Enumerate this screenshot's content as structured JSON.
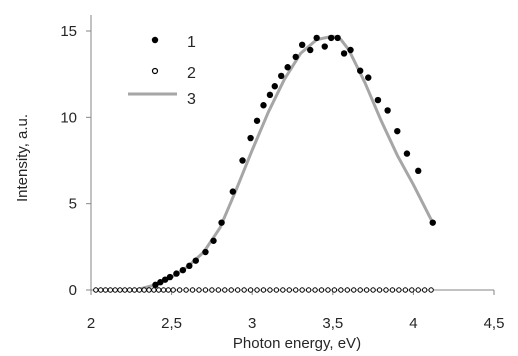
{
  "chart_data": {
    "type": "scatter",
    "xlabel": "Photon energy, eV)",
    "ylabel": "Intensity, a.u.",
    "xlim": [
      2,
      4.5
    ],
    "ylim": [
      0,
      15
    ],
    "x_ticks": [
      "2",
      "2,5",
      "3",
      "3,5",
      "4",
      "4,5"
    ],
    "y_ticks": [
      "0",
      "5",
      "10",
      "15"
    ],
    "x_tick_values": [
      2,
      2.5,
      3,
      3.5,
      4,
      4.5
    ],
    "y_tick_values": [
      0,
      5,
      10,
      15
    ],
    "grid": false,
    "legend_position": "top-left",
    "series": [
      {
        "name": "1",
        "marker": "filled-circle",
        "color": "#000000",
        "points": [
          [
            2.4,
            0.3
          ],
          [
            2.43,
            0.45
          ],
          [
            2.46,
            0.6
          ],
          [
            2.49,
            0.75
          ],
          [
            2.53,
            0.95
          ],
          [
            2.57,
            1.15
          ],
          [
            2.61,
            1.4
          ],
          [
            2.65,
            1.7
          ],
          [
            2.71,
            2.2
          ],
          [
            2.76,
            2.85
          ],
          [
            2.81,
            3.9
          ],
          [
            2.88,
            5.7
          ],
          [
            2.94,
            7.5
          ],
          [
            2.99,
            8.8
          ],
          [
            3.03,
            9.8
          ],
          [
            3.07,
            10.7
          ],
          [
            3.11,
            11.3
          ],
          [
            3.14,
            11.8
          ],
          [
            3.18,
            12.4
          ],
          [
            3.22,
            12.9
          ],
          [
            3.27,
            13.5
          ],
          [
            3.31,
            14.2
          ],
          [
            3.36,
            13.9
          ],
          [
            3.4,
            14.6
          ],
          [
            3.45,
            14.1
          ],
          [
            3.49,
            14.6
          ],
          [
            3.53,
            14.6
          ],
          [
            3.57,
            13.7
          ],
          [
            3.61,
            13.9
          ],
          [
            3.67,
            12.7
          ],
          [
            3.72,
            12.3
          ],
          [
            3.78,
            11.0
          ],
          [
            3.84,
            10.4
          ],
          [
            3.9,
            9.2
          ],
          [
            3.96,
            7.9
          ],
          [
            4.03,
            6.9
          ],
          [
            4.12,
            3.9
          ]
        ]
      },
      {
        "name": "2",
        "marker": "open-circle",
        "color": "#000000",
        "points": [
          [
            2.03,
            0
          ],
          [
            2.06,
            0
          ],
          [
            2.09,
            0
          ],
          [
            2.12,
            0
          ],
          [
            2.15,
            0
          ],
          [
            2.18,
            0
          ],
          [
            2.21,
            0
          ],
          [
            2.24,
            0
          ],
          [
            2.27,
            0
          ],
          [
            2.3,
            0
          ],
          [
            2.33,
            0
          ],
          [
            2.36,
            0
          ],
          [
            2.39,
            0
          ],
          [
            2.42,
            0
          ],
          [
            2.45,
            0
          ],
          [
            2.48,
            0
          ],
          [
            2.51,
            0
          ],
          [
            2.55,
            0
          ],
          [
            2.59,
            0
          ],
          [
            2.63,
            0
          ],
          [
            2.67,
            0
          ],
          [
            2.71,
            0
          ],
          [
            2.75,
            0
          ],
          [
            2.79,
            0
          ],
          [
            2.83,
            0
          ],
          [
            2.87,
            0
          ],
          [
            2.91,
            0
          ],
          [
            2.95,
            0
          ],
          [
            2.99,
            0
          ],
          [
            3.03,
            0
          ],
          [
            3.07,
            0
          ],
          [
            3.11,
            0
          ],
          [
            3.15,
            0
          ],
          [
            3.19,
            0
          ],
          [
            3.23,
            0
          ],
          [
            3.27,
            0
          ],
          [
            3.31,
            0
          ],
          [
            3.35,
            0
          ],
          [
            3.39,
            0
          ],
          [
            3.43,
            0
          ],
          [
            3.47,
            0
          ],
          [
            3.51,
            0
          ],
          [
            3.55,
            0
          ],
          [
            3.59,
            0
          ],
          [
            3.63,
            0
          ],
          [
            3.67,
            0
          ],
          [
            3.71,
            0
          ],
          [
            3.75,
            0
          ],
          [
            3.79,
            0
          ],
          [
            3.83,
            0
          ],
          [
            3.87,
            0
          ],
          [
            3.91,
            0
          ],
          [
            3.95,
            0
          ],
          [
            3.99,
            0
          ],
          [
            4.03,
            0
          ],
          [
            4.07,
            0
          ],
          [
            4.11,
            0
          ]
        ]
      },
      {
        "name": "3",
        "marker": "line",
        "color": "#a6a6a6",
        "points": [
          [
            2.3,
            0.05
          ],
          [
            2.4,
            0.3
          ],
          [
            2.5,
            0.75
          ],
          [
            2.6,
            1.35
          ],
          [
            2.7,
            2.2
          ],
          [
            2.8,
            3.6
          ],
          [
            2.9,
            5.8
          ],
          [
            3.0,
            8.1
          ],
          [
            3.1,
            10.3
          ],
          [
            3.2,
            12.2
          ],
          [
            3.3,
            13.7
          ],
          [
            3.4,
            14.5
          ],
          [
            3.5,
            14.7
          ],
          [
            3.55,
            14.5
          ],
          [
            3.6,
            13.9
          ],
          [
            3.7,
            12.0
          ],
          [
            3.8,
            9.8
          ],
          [
            3.9,
            7.8
          ],
          [
            4.0,
            6.1
          ],
          [
            4.12,
            3.9
          ]
        ]
      }
    ]
  }
}
